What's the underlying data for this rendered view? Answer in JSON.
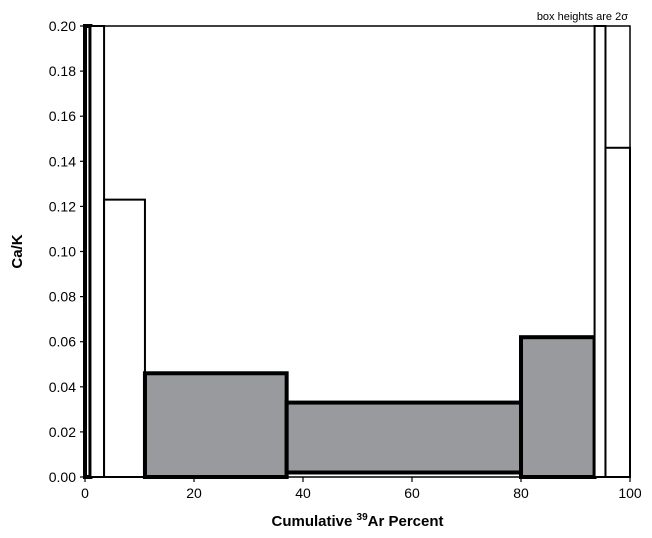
{
  "chart_data": {
    "type": "bar",
    "subtype": "age-spectrum-step-boxes",
    "note": "box heights are 2σ",
    "xlabel": {
      "prefix": "Cumulative ",
      "superscript": "39",
      "suffix": "Ar Percent"
    },
    "ylabel": "Ca/K",
    "xlim": [
      0,
      100
    ],
    "ylim": [
      0,
      0.2
    ],
    "x_ticks": [
      "0",
      "20",
      "40",
      "60",
      "80",
      "100"
    ],
    "y_ticks": [
      "0.00",
      "0.02",
      "0.04",
      "0.06",
      "0.08",
      "0.10",
      "0.12",
      "0.14",
      "0.16",
      "0.18",
      "0.20"
    ],
    "grid": false,
    "colors": {
      "plateau_fill": "#999a9e",
      "open_fill": "#ffffff",
      "stroke": "#000000"
    },
    "steps": [
      {
        "x_start": 0.0,
        "x_end": 1.0,
        "y_low": 0.0,
        "y_high": 0.2,
        "plateau": false,
        "heavy": true
      },
      {
        "x_start": 1.0,
        "x_end": 3.5,
        "y_low": 0.0,
        "y_high": 0.2,
        "plateau": false,
        "heavy": false
      },
      {
        "x_start": 3.5,
        "x_end": 11.0,
        "y_low": 0.0,
        "y_high": 0.123,
        "plateau": false,
        "heavy": false
      },
      {
        "x_start": 11.0,
        "x_end": 37.0,
        "y_low": 0.0,
        "y_high": 0.046,
        "plateau": true,
        "heavy": true
      },
      {
        "x_start": 37.0,
        "x_end": 80.0,
        "y_low": 0.002,
        "y_high": 0.033,
        "plateau": true,
        "heavy": true
      },
      {
        "x_start": 80.0,
        "x_end": 93.5,
        "y_low": 0.0,
        "y_high": 0.062,
        "plateau": true,
        "heavy": true
      },
      {
        "x_start": 93.5,
        "x_end": 95.5,
        "y_low": 0.0,
        "y_high": 0.2,
        "plateau": false,
        "heavy": false
      },
      {
        "x_start": 95.5,
        "x_end": 100.0,
        "y_low": 0.0,
        "y_high": 0.146,
        "plateau": false,
        "heavy": false
      }
    ]
  }
}
